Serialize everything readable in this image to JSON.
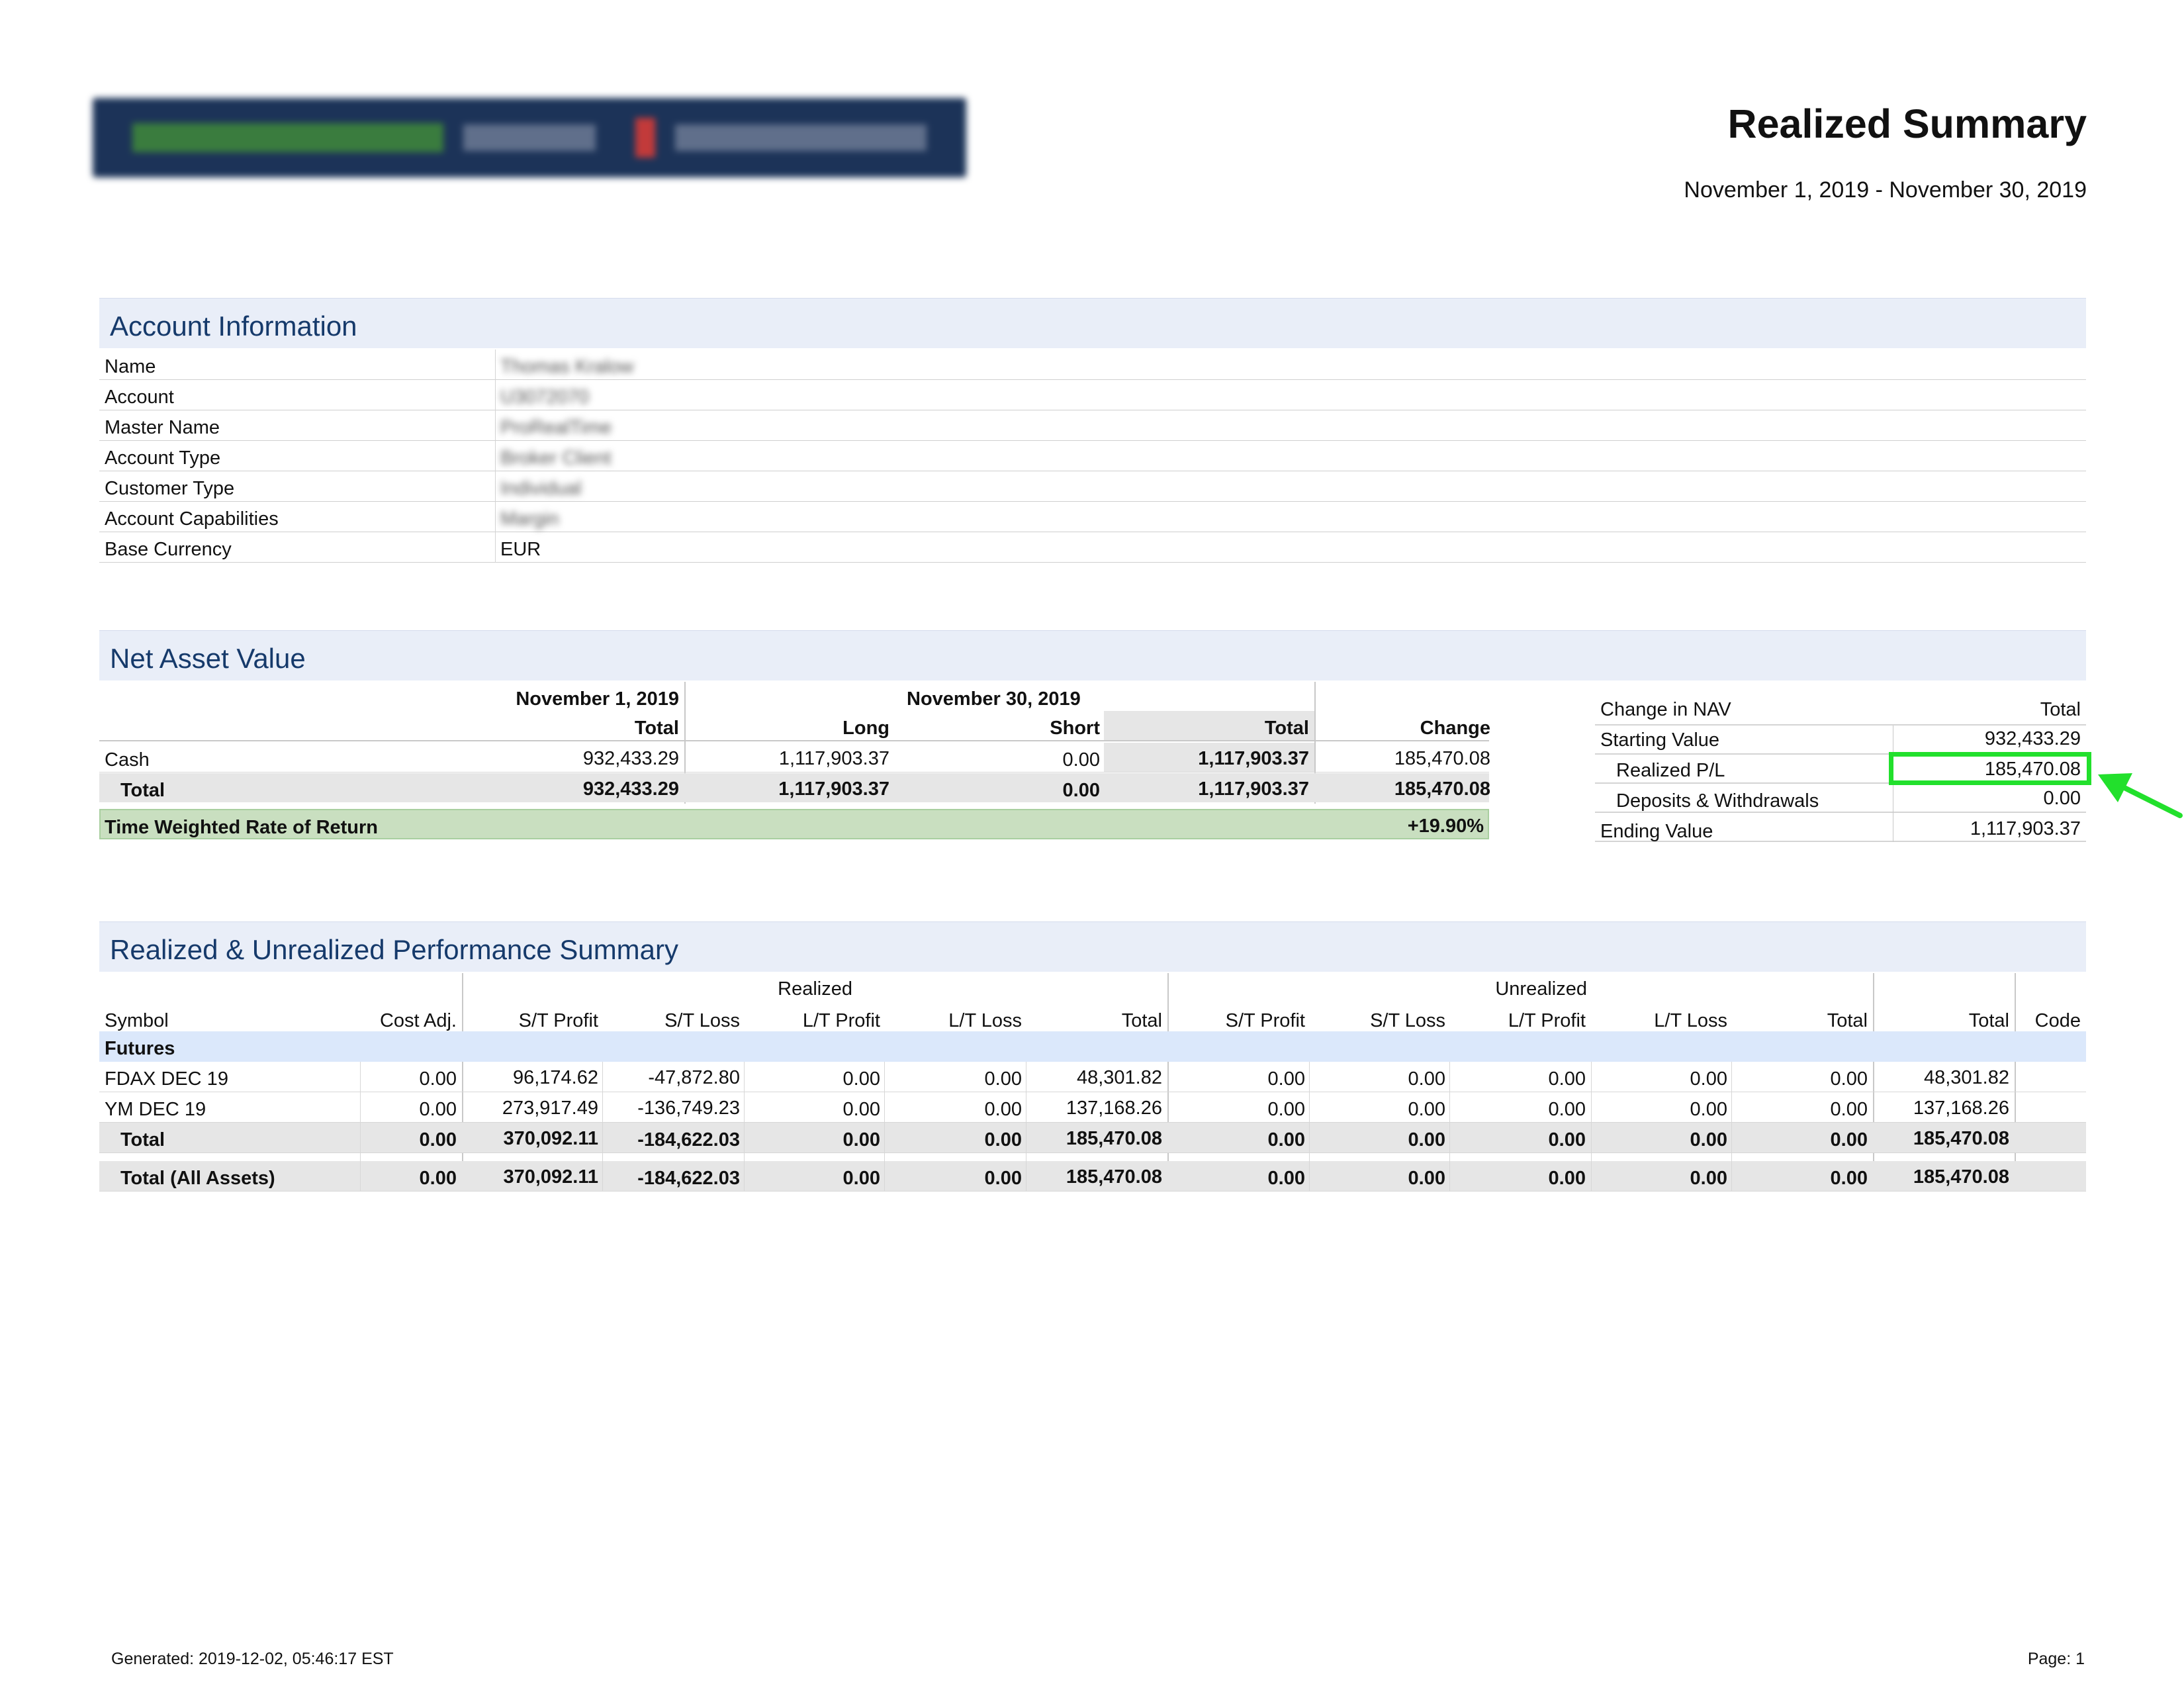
{
  "header": {
    "logo_text": "ProRealTime Trader | Interactive Brokers",
    "title": "Realized Summary",
    "period": "November 1, 2019 - November 30, 2019"
  },
  "account_info": {
    "heading": "Account Information",
    "rows": [
      {
        "label": "Name",
        "value": "Thomas Kralow"
      },
      {
        "label": "Account",
        "value": "U3072070"
      },
      {
        "label": "Master Name",
        "value": "ProRealTime"
      },
      {
        "label": "Account Type",
        "value": "Broker Client"
      },
      {
        "label": "Customer Type",
        "value": "Individual"
      },
      {
        "label": "Account Capabilities",
        "value": "Margin"
      },
      {
        "label": "Base Currency",
        "value": "EUR"
      }
    ]
  },
  "nav": {
    "heading": "Net Asset Value",
    "date1": "November 1, 2019",
    "date2": "November 30, 2019",
    "cols": {
      "total1": "Total",
      "long": "Long",
      "short": "Short",
      "total2": "Total",
      "change": "Change"
    },
    "rows": [
      {
        "label": "Cash",
        "total1": "932,433.29",
        "long": "1,117,903.37",
        "short": "0.00",
        "total2": "1,117,903.37",
        "change": "185,470.08"
      },
      {
        "label": "Total",
        "total1": "932,433.29",
        "long": "1,117,903.37",
        "short": "0.00",
        "total2": "1,117,903.37",
        "change": "185,470.08"
      }
    ],
    "twrr_label": "Time Weighted Rate of Return",
    "twrr_value": "+19.90%"
  },
  "change_in_nav": {
    "heading": "Change in NAV",
    "total_label": "Total",
    "rows": [
      {
        "label": "Starting Value",
        "value": "932,433.29"
      },
      {
        "label": "Realized P/L",
        "value": "185,470.08"
      },
      {
        "label": "Deposits & Withdrawals",
        "value": "0.00"
      },
      {
        "label": "Ending Value",
        "value": "1,117,903.37"
      }
    ],
    "highlight_color": "#22e02c"
  },
  "performance": {
    "heading": "Realized & Unrealized Performance Summary",
    "group_realized": "Realized",
    "group_unrealized": "Unrealized",
    "columns": [
      "Symbol",
      "Cost Adj.",
      "S/T Profit",
      "S/T Loss",
      "L/T Profit",
      "L/T Loss",
      "Total",
      "S/T Profit",
      "S/T Loss",
      "L/T Profit",
      "L/T Loss",
      "Total",
      "Total",
      "Code"
    ],
    "category": "Futures",
    "rows": [
      [
        "FDAX DEC 19",
        "0.00",
        "96,174.62",
        "-47,872.80",
        "0.00",
        "0.00",
        "48,301.82",
        "0.00",
        "0.00",
        "0.00",
        "0.00",
        "0.00",
        "48,301.82",
        ""
      ],
      [
        "YM DEC 19",
        "0.00",
        "273,917.49",
        "-136,749.23",
        "0.00",
        "0.00",
        "137,168.26",
        "0.00",
        "0.00",
        "0.00",
        "0.00",
        "0.00",
        "137,168.26",
        ""
      ],
      [
        "Total",
        "0.00",
        "370,092.11",
        "-184,622.03",
        "0.00",
        "0.00",
        "185,470.08",
        "0.00",
        "0.00",
        "0.00",
        "0.00",
        "0.00",
        "185,470.08",
        ""
      ],
      [
        "Total (All Assets)",
        "0.00",
        "370,092.11",
        "-184,622.03",
        "0.00",
        "0.00",
        "185,470.08",
        "0.00",
        "0.00",
        "0.00",
        "0.00",
        "0.00",
        "185,470.08",
        ""
      ]
    ]
  },
  "footer": {
    "generated": "Generated: 2019-12-02, 05:46:17 EST",
    "page": "Page: 1"
  }
}
